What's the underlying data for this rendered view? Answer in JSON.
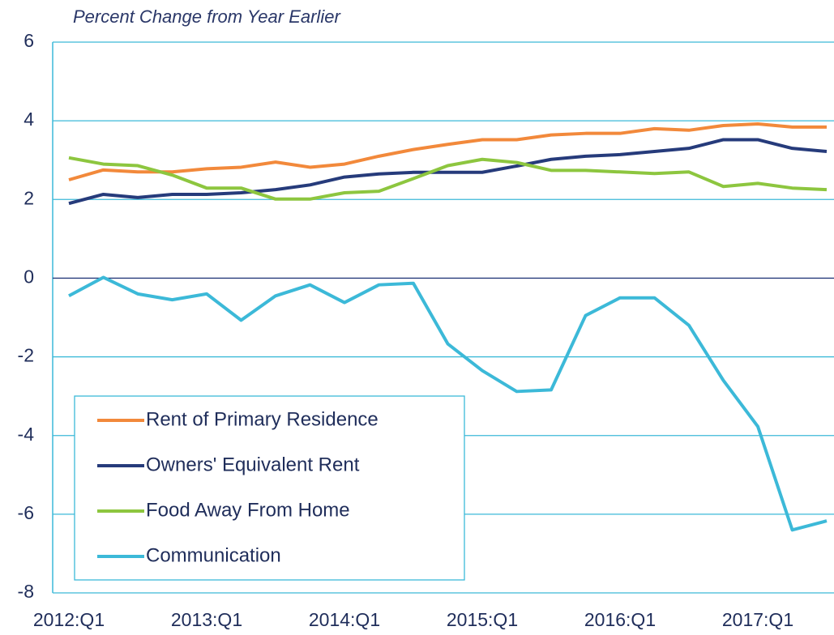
{
  "chart_data": {
    "type": "line",
    "title": "Percent Change from  Year Earlier",
    "categories": [
      "2012:Q1",
      null,
      null,
      null,
      "2013:Q1",
      null,
      null,
      null,
      "2014:Q1",
      null,
      null,
      null,
      "2015:Q1",
      null,
      null,
      null,
      "2016:Q1",
      null,
      null,
      null,
      "2017:Q1",
      null,
      null
    ],
    "series": [
      {
        "name": "Rent of Primary Residence",
        "color": "#f2893b",
        "values": [
          2.5,
          2.75,
          2.7,
          2.7,
          2.78,
          2.82,
          2.95,
          2.82,
          2.9,
          3.1,
          3.27,
          3.4,
          3.52,
          3.52,
          3.64,
          3.68,
          3.68,
          3.8,
          3.76,
          3.88,
          3.92,
          3.84,
          3.84
        ]
      },
      {
        "name": "Owners' Equivalent Rent",
        "color": "#263b7b",
        "values": [
          1.9,
          2.13,
          2.05,
          2.13,
          2.13,
          2.17,
          2.25,
          2.37,
          2.57,
          2.65,
          2.69,
          2.69,
          2.69,
          2.85,
          3.02,
          3.1,
          3.14,
          3.22,
          3.3,
          3.52,
          3.52,
          3.3,
          3.22
        ]
      },
      {
        "name": "Food Away From Home",
        "color": "#8dc63f",
        "values": [
          3.06,
          2.9,
          2.86,
          2.62,
          2.29,
          2.29,
          2.01,
          2.01,
          2.17,
          2.21,
          2.53,
          2.86,
          3.02,
          2.94,
          2.74,
          2.74,
          2.7,
          2.66,
          2.7,
          2.33,
          2.41,
          2.29,
          2.25
        ]
      },
      {
        "name": "Communication",
        "color": "#3cb9d8",
        "values": [
          -0.45,
          0.02,
          -0.4,
          -0.55,
          -0.4,
          -1.07,
          -0.45,
          -0.17,
          -0.62,
          -0.17,
          -0.13,
          -1.67,
          -2.35,
          -2.88,
          -2.84,
          -0.95,
          -0.5,
          -0.5,
          -1.2,
          -2.6,
          -3.77,
          -6.4,
          -6.17
        ]
      }
    ],
    "ylim": [
      -8,
      6
    ],
    "yticks": [
      -8,
      -6,
      -4,
      -2,
      0,
      2,
      4,
      6
    ],
    "grid": true
  }
}
